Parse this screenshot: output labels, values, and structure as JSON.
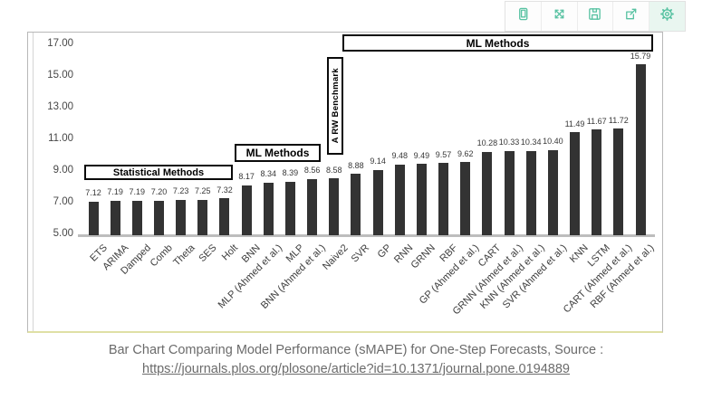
{
  "toolbar": {
    "buttons": [
      {
        "icon": "device-icon"
      },
      {
        "icon": "expand-icon"
      },
      {
        "icon": "save-icon"
      },
      {
        "icon": "export-icon"
      },
      {
        "icon": "gear-icon"
      }
    ]
  },
  "colors": {
    "toolbar_icon": "#58c2a2",
    "bar": "#333333",
    "annotation_border": "#000000",
    "caption_text": "#6b6b6b",
    "card_bottom_edge": "#dfe0a5"
  },
  "chart_data": {
    "type": "bar",
    "title": "",
    "xlabel": "",
    "ylabel": "",
    "ylim": [
      5,
      17
    ],
    "ytick_step": 2,
    "yticks": [
      "17.00",
      "15.00",
      "13.00",
      "11.00",
      "9.00",
      "7.00",
      "5.00"
    ],
    "grid": false,
    "legend": false,
    "bar_color": "#333333",
    "categories": [
      "ETS",
      "ARIMA",
      "Damped",
      "Comb",
      "Theta",
      "SES",
      "Holt",
      "BNN",
      "MLP (Ahmed et al.)",
      "MLP",
      "BNN (Ahmed et al.)",
      "Naive2",
      "SVR",
      "GP",
      "RNN",
      "GRNN",
      "RBF",
      "GP (Ahmed et al.)",
      "CART",
      "GRNN (Ahmed et al.)",
      "KNN (Ahmed et al.)",
      "SVR (Ahmed et al.)",
      "KNN",
      "LSTM",
      "CART (Ahmed et al.)",
      "RBF (Ahmed et al.)"
    ],
    "values": [
      7.12,
      7.19,
      7.19,
      7.2,
      7.23,
      7.25,
      7.32,
      8.17,
      8.34,
      8.39,
      8.56,
      8.58,
      8.88,
      9.14,
      9.48,
      9.49,
      9.57,
      9.62,
      10.28,
      10.33,
      10.34,
      10.4,
      11.49,
      11.67,
      11.72,
      15.79
    ],
    "annotations": [
      {
        "id": "statistical-methods",
        "label": "Statistical Methods",
        "orientation": "horizontal"
      },
      {
        "id": "ml-methods-small",
        "label": "ML Methods",
        "orientation": "horizontal"
      },
      {
        "id": "rw-benchmark",
        "label": "A RW Benchmark",
        "orientation": "vertical"
      },
      {
        "id": "ml-methods-large",
        "label": "ML Methods",
        "orientation": "horizontal"
      }
    ]
  },
  "caption": {
    "text": "Bar Chart Comparing Model Performance (sMAPE) for One-Step Forecasts, Source :",
    "link": "https://journals.plos.org/plosone/article?id=10.1371/journal.pone.0194889"
  }
}
